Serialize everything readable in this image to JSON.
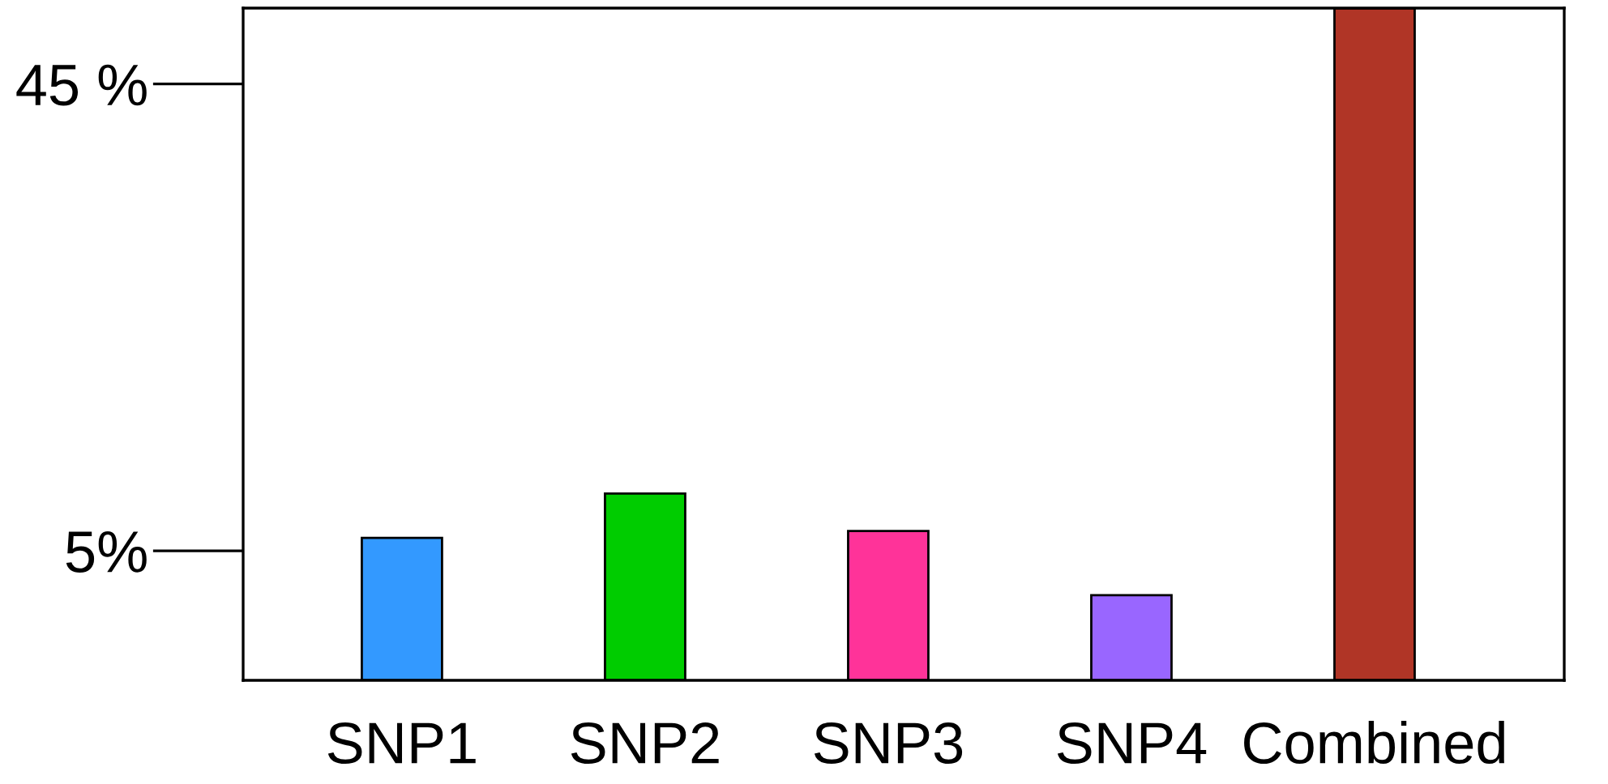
{
  "chart_data": {
    "type": "bar",
    "categories": [
      "SNP1",
      "SNP2",
      "SNP3",
      "SNP4",
      "Combined"
    ],
    "values": [
      12.2,
      16.0,
      12.8,
      7.3,
      57.6
    ],
    "base": [
      -6.1,
      -6.1,
      -6.1,
      -6.1,
      -6.1
    ],
    "colors": [
      "#3399ff",
      "#00cc00",
      "#ff3399",
      "#9966ff",
      "#b03526"
    ],
    "ylim": [
      -6.1,
      51.5
    ],
    "yticks": [
      {
        "value": 5,
        "label": "5%"
      },
      {
        "value": 45,
        "label": "45 %"
      }
    ],
    "grid": false
  }
}
